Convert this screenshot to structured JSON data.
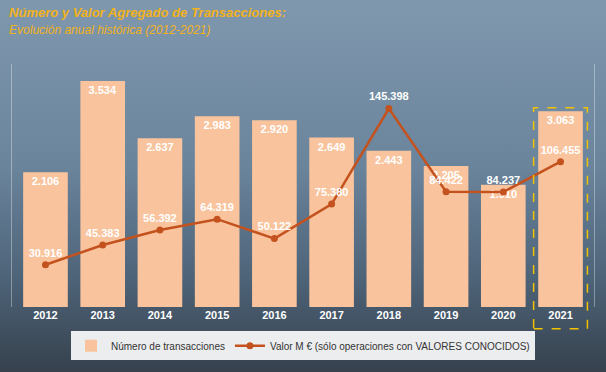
{
  "chart_data": {
    "type": "bar",
    "title": "Número y Valor Agregado de Transacciones:",
    "subtitle": "Evolución anual histórica (2012-2021)",
    "categories": [
      "2012",
      "2013",
      "2014",
      "2015",
      "2016",
      "2017",
      "2018",
      "2019",
      "2020",
      "2021"
    ],
    "series": [
      {
        "name": "Número de transacciones",
        "type": "bar",
        "color": "#f9c49d",
        "values": [
          2106,
          3534,
          2637,
          2983,
          2920,
          2649,
          2443,
          2205,
          1910,
          3063
        ],
        "value_labels": [
          "2.106",
          "3.534",
          "2.637",
          "2.983",
          "2.920",
          "2.649",
          "2.443",
          "2.205",
          "1.910",
          "3.063"
        ]
      },
      {
        "name": "Valor M € (sólo operaciones con VALORES CONOCIDOS)",
        "type": "line",
        "color": "#c4521f",
        "marker": "circle",
        "axis": "y2",
        "values": [
          30916,
          45383,
          56392,
          64319,
          50122,
          75380,
          145398,
          84422,
          84237,
          106455
        ],
        "value_labels": [
          "30.916",
          "45.383",
          "56.392",
          "64.319",
          "50.122",
          "75.380",
          "145.398",
          "84.422",
          "84.237",
          "106.455"
        ]
      }
    ],
    "ylim": [
      0,
      3800
    ],
    "y2lim": [
      0,
      178000
    ],
    "data_labels": true,
    "tick_labels": "x",
    "legend": "bottom",
    "grid": false
  }
}
